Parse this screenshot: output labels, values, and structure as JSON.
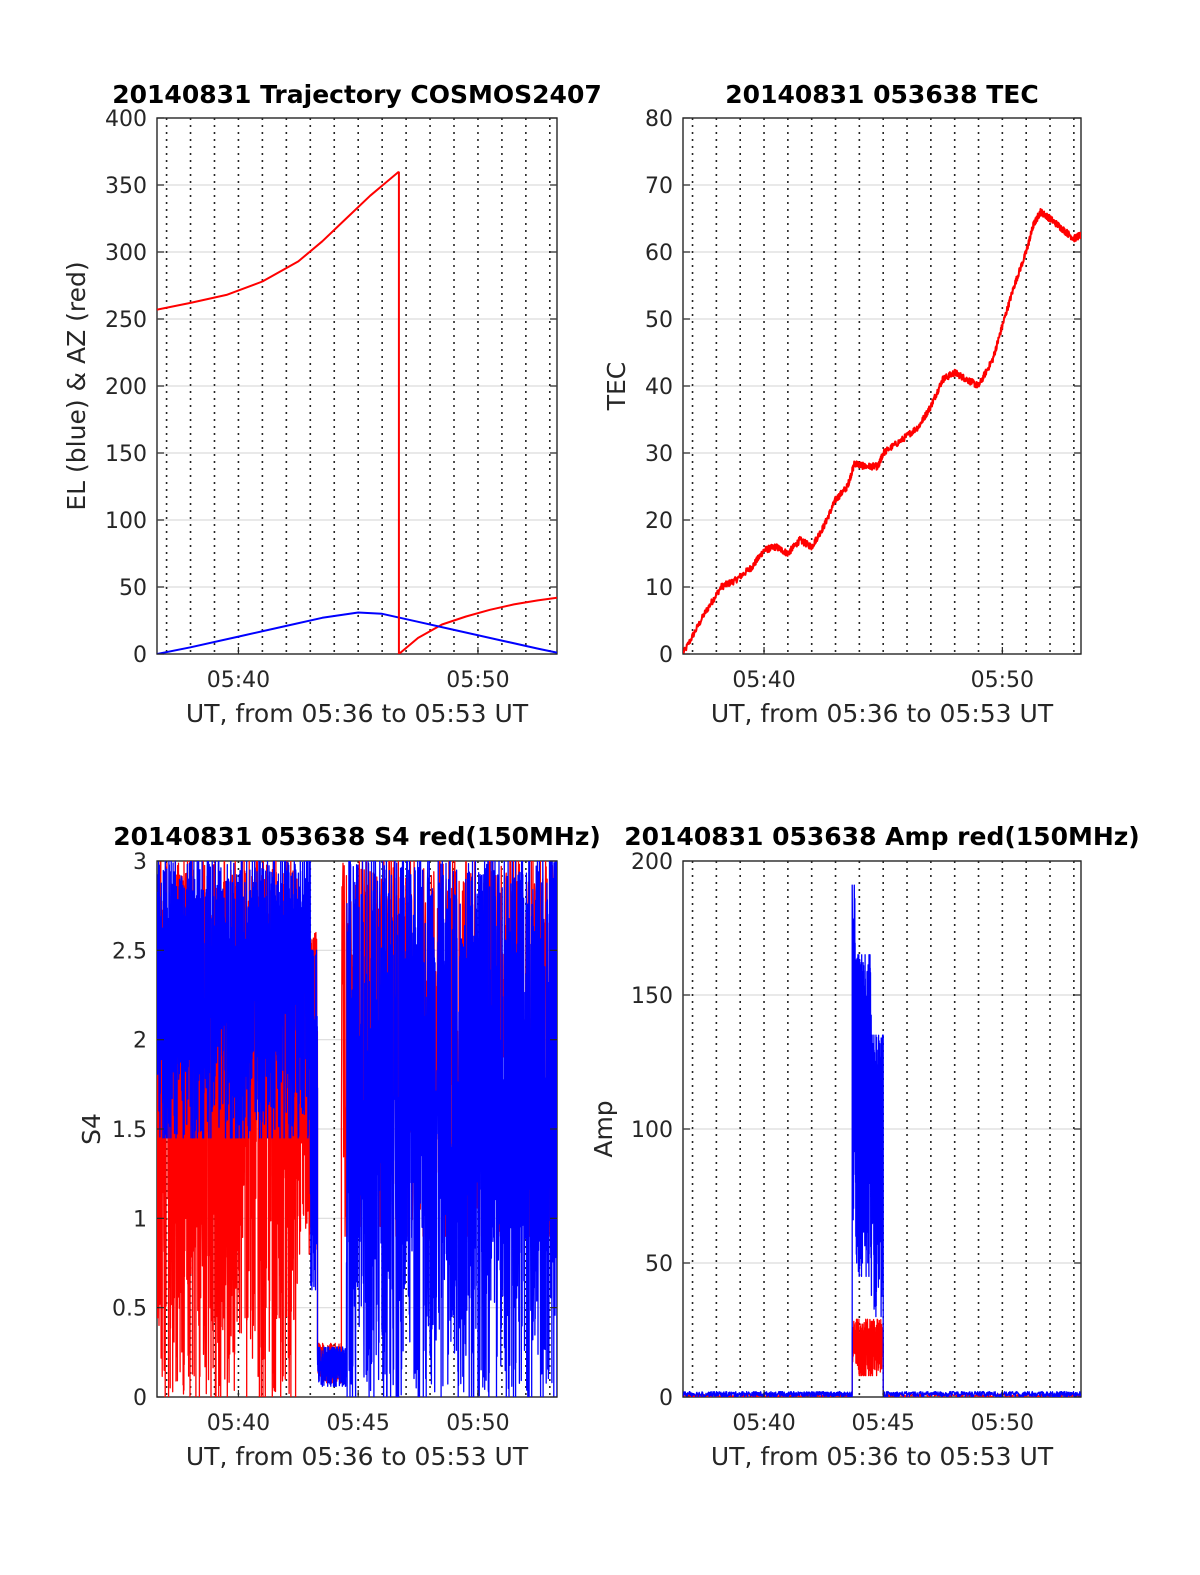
{
  "figure": {
    "x_tick_labels": [
      "05:40",
      "05:45",
      "05:50"
    ]
  },
  "colors": {
    "red": "#ff0000",
    "blue": "#0000ff"
  },
  "chart_data": [
    {
      "id": "trajectory",
      "type": "line",
      "title": "20140831 Trajectory COSMOS2407",
      "xlabel": "UT, from 05:36 to 05:53 UT",
      "ylabel": "EL (blue) & AZ (red)",
      "x_unit": "minutes after 05:00 UT",
      "xlim": [
        36.6,
        53.3
      ],
      "ylim": [
        0,
        400
      ],
      "yticks": [
        0,
        50,
        100,
        150,
        200,
        250,
        300,
        350,
        400
      ],
      "xticks": [
        40,
        50
      ],
      "xtick_labels": [
        "05:40",
        "05:50"
      ],
      "grid": true,
      "series": [
        {
          "color": "red",
          "segments": [
            [
              [
                36.6,
                257
              ],
              [
                38,
                262
              ],
              [
                39.5,
                268
              ],
              [
                41,
                278
              ],
              [
                42.5,
                293
              ],
              [
                43.5,
                308
              ],
              [
                44.5,
                325
              ],
              [
                45.5,
                342
              ],
              [
                46.7,
                360
              ]
            ],
            [
              [
                46.7,
                0
              ],
              [
                47.5,
                12
              ],
              [
                48.5,
                22
              ],
              [
                49.5,
                28
              ],
              [
                50.5,
                33
              ],
              [
                51.5,
                37
              ],
              [
                52.5,
                40
              ],
              [
                53.3,
                42
              ]
            ]
          ]
        },
        {
          "color": "blue",
          "segments": [
            [
              [
                36.6,
                0
              ],
              [
                38,
                5
              ],
              [
                40,
                13
              ],
              [
                42,
                21
              ],
              [
                43.5,
                27
              ],
              [
                45,
                31
              ],
              [
                46,
                30
              ],
              [
                47.5,
                24
              ],
              [
                49,
                18
              ],
              [
                51,
                10
              ],
              [
                52.5,
                4
              ],
              [
                53.3,
                1
              ]
            ]
          ]
        }
      ]
    },
    {
      "id": "tec",
      "type": "line",
      "title": "20140831 053638 TEC",
      "xlabel": "UT, from 05:36 to 05:53 UT",
      "ylabel": "TEC",
      "x_unit": "minutes after 05:00 UT",
      "xlim": [
        36.6,
        53.3
      ],
      "ylim": [
        0,
        80
      ],
      "yticks": [
        0,
        10,
        20,
        30,
        40,
        50,
        60,
        70,
        80
      ],
      "xticks": [
        40,
        50
      ],
      "xtick_labels": [
        "05:40",
        "05:50"
      ],
      "grid": true,
      "series": [
        {
          "color": "red",
          "noise": 0.5,
          "points": [
            [
              36.6,
              0
            ],
            [
              37.5,
              6
            ],
            [
              38.2,
              10
            ],
            [
              38.8,
              11
            ],
            [
              39.5,
              13
            ],
            [
              40,
              15.5
            ],
            [
              40.5,
              16
            ],
            [
              41,
              15
            ],
            [
              41.5,
              17
            ],
            [
              42,
              16
            ],
            [
              42.5,
              19
            ],
            [
              43,
              23
            ],
            [
              43.5,
              25
            ],
            [
              43.8,
              28.5
            ],
            [
              44.2,
              28
            ],
            [
              44.8,
              28
            ],
            [
              45,
              30
            ],
            [
              45.8,
              32
            ],
            [
              46.5,
              34
            ],
            [
              47,
              37
            ],
            [
              47.5,
              41
            ],
            [
              48,
              42
            ],
            [
              48.5,
              41
            ],
            [
              49,
              40
            ],
            [
              49.6,
              44
            ],
            [
              50,
              49
            ],
            [
              50.5,
              55
            ],
            [
              51,
              60
            ],
            [
              51.3,
              64
            ],
            [
              51.6,
              66
            ],
            [
              52,
              65
            ],
            [
              52.5,
              63.5
            ],
            [
              53,
              62
            ],
            [
              53.3,
              62.5
            ]
          ]
        }
      ]
    },
    {
      "id": "s4",
      "type": "line",
      "title": "20140831 053638 S4 red(150MHz)",
      "xlabel": "UT, from 05:36 to 05:53 UT",
      "ylabel": "S4",
      "x_unit": "minutes after 05:00 UT",
      "xlim": [
        36.6,
        53.3
      ],
      "ylim": [
        0,
        3
      ],
      "yticks": [
        0,
        0.5,
        1,
        1.5,
        2,
        2.5,
        3
      ],
      "ytick_labels": [
        "0",
        "0.5",
        "1",
        "1.5",
        "2",
        "2.5",
        "3"
      ],
      "xticks": [
        40,
        45,
        50
      ],
      "xtick_labels": [
        "05:40",
        "05:45",
        "05:50"
      ],
      "grid": true,
      "series": [
        {
          "color": "red",
          "kind": "noisy",
          "regions": [
            {
              "x": [
                36.6,
                42.5
              ],
              "low": 0,
              "high": 3,
              "density": 900
            },
            {
              "x": [
                42.5,
                43.3
              ],
              "low": 0.8,
              "high": 2.6,
              "density": 150
            },
            {
              "x": [
                43.3,
                44.3
              ],
              "low": 0.08,
              "high": 0.3,
              "density": 200
            },
            {
              "x": [
                44.3,
                53.3
              ],
              "low": 0.9,
              "high": 3,
              "density": 700
            }
          ]
        },
        {
          "color": "blue",
          "kind": "noisy",
          "regions": [
            {
              "x": [
                36.6,
                43.0
              ],
              "low": 1.45,
              "high": 3,
              "density": 1200
            },
            {
              "x": [
                43.0,
                43.3
              ],
              "low": 0.6,
              "high": 2.5,
              "density": 80
            },
            {
              "x": [
                43.3,
                44.5
              ],
              "low": 0.06,
              "high": 0.28,
              "density": 220
            },
            {
              "x": [
                44.5,
                53.3
              ],
              "low": 0,
              "high": 3,
              "density": 1400
            }
          ]
        }
      ]
    },
    {
      "id": "amp",
      "type": "line",
      "title": "20140831 053638 Amp red(150MHz)",
      "xlabel": "UT, from 05:36 to 05:53 UT",
      "ylabel": "Amp",
      "x_unit": "minutes after 05:00 UT",
      "xlim": [
        36.6,
        53.3
      ],
      "ylim": [
        0,
        200
      ],
      "yticks": [
        0,
        50,
        100,
        150,
        200
      ],
      "xticks": [
        40,
        45,
        50
      ],
      "xtick_labels": [
        "05:40",
        "05:45",
        "05:50"
      ],
      "grid": true,
      "series": [
        {
          "color": "red",
          "kind": "noisy",
          "regions": [
            {
              "x": [
                36.6,
                43.7
              ],
              "low": 0,
              "high": 1,
              "density": 300
            },
            {
              "x": [
                43.7,
                45.0
              ],
              "low": 8,
              "high": 29,
              "density": 250
            },
            {
              "x": [
                45.0,
                53.3
              ],
              "low": 0,
              "high": 1,
              "density": 300
            }
          ]
        },
        {
          "color": "blue",
          "kind": "noisy",
          "regions": [
            {
              "x": [
                36.6,
                43.7
              ],
              "low": 0,
              "high": 2,
              "density": 500
            },
            {
              "x": [
                43.7,
                43.85
              ],
              "low": 60,
              "high": 191,
              "density": 40
            },
            {
              "x": [
                43.85,
                44.5
              ],
              "low": 45,
              "high": 165,
              "density": 250
            },
            {
              "x": [
                44.5,
                45.0
              ],
              "low": 30,
              "high": 135,
              "density": 150
            },
            {
              "x": [
                45.0,
                53.3
              ],
              "low": 0,
              "high": 2,
              "density": 500
            }
          ]
        }
      ]
    }
  ]
}
